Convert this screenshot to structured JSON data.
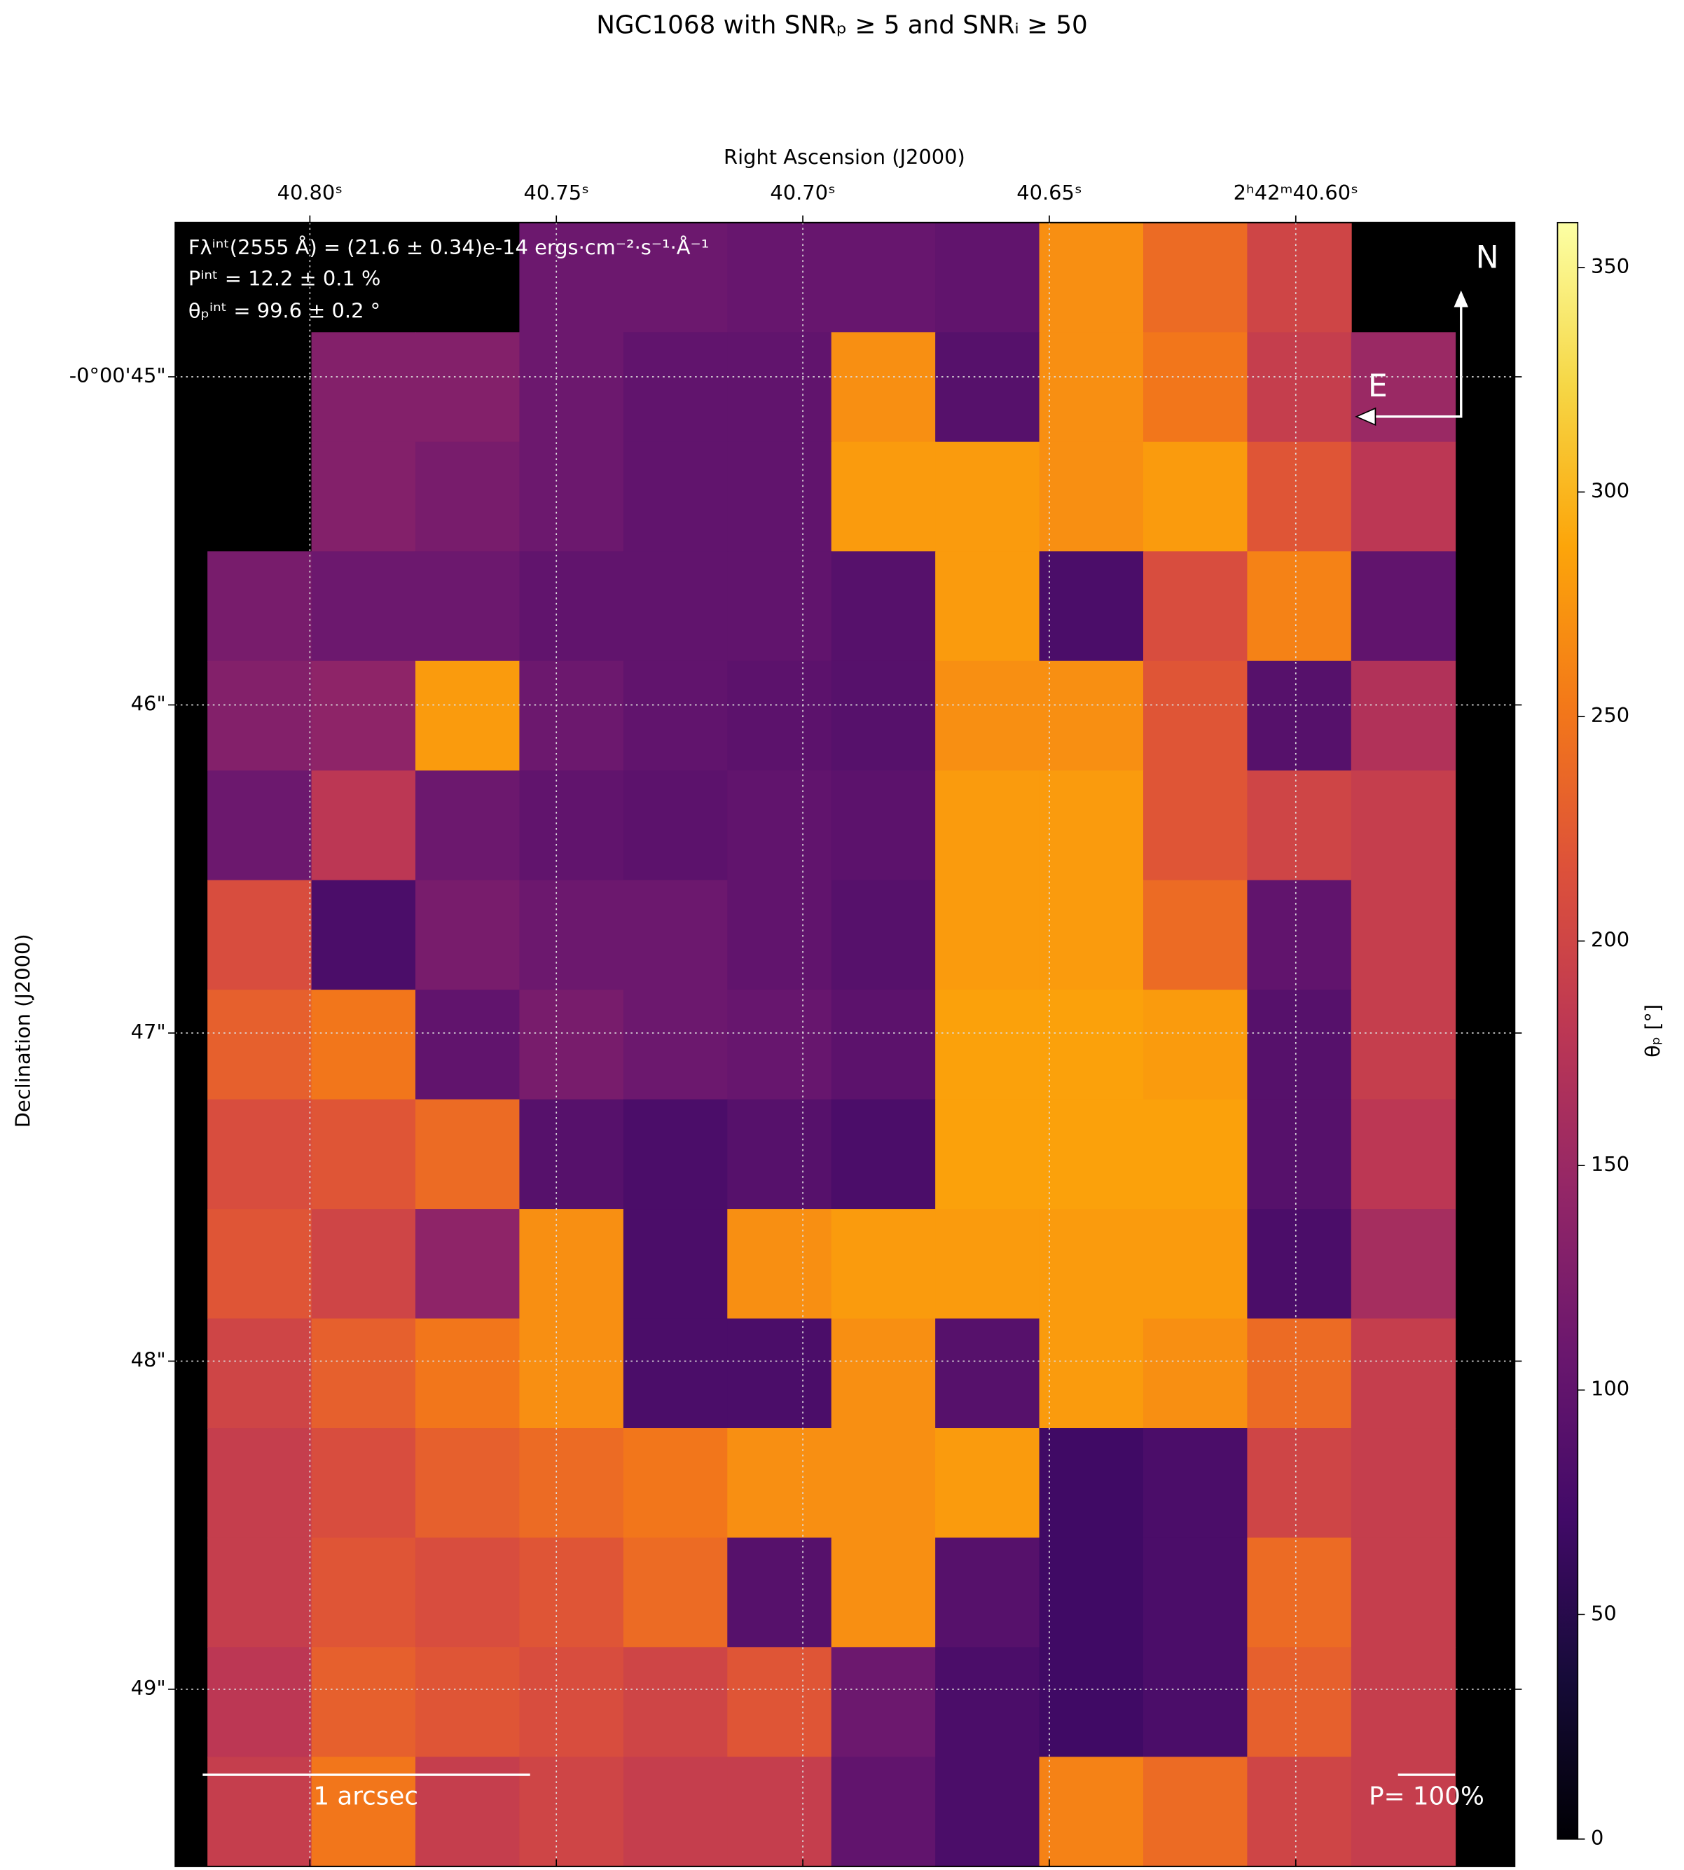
{
  "chart_data": {
    "type": "heatmap",
    "title": "NGC1068 with SNRₚ ≥ 5 and SNRᵢ ≥ 50",
    "xlabel": "Right Ascension (J2000)",
    "ylabel": "Declination (J2000)",
    "xlim": [
      40.8273,
      40.5556
    ],
    "xticks": [
      {
        "value": 40.8,
        "label": "40.80ˢ"
      },
      {
        "value": 40.75,
        "label": "40.75ˢ"
      },
      {
        "value": 40.7,
        "label": "40.70ˢ"
      },
      {
        "value": 40.65,
        "label": "40.65ˢ"
      },
      {
        "value": 40.6,
        "label": "2ʰ42ᵐ40.60ˢ"
      }
    ],
    "ylim": [
      49.54,
      44.53
    ],
    "yticks": [
      {
        "value": 45,
        "label": "-0°00'45\""
      },
      {
        "value": 46,
        "label": "46\""
      },
      {
        "value": 47,
        "label": "47\""
      },
      {
        "value": 48,
        "label": "48\""
      },
      {
        "value": 49,
        "label": "49\""
      }
    ],
    "grid": true,
    "colormap": "inferno",
    "clim": [
      0,
      360
    ],
    "cticks": [
      0,
      50,
      100,
      150,
      200,
      250,
      300,
      350
    ],
    "clabel": "θₚ [°]",
    "annotations": [
      "Fλⁱⁿᵗ(2555 Å) = (21.6 ± 0.34)e-14 ergs·cm⁻²·s⁻¹·Å⁻¹",
      "Pⁱⁿᵗ = 12.2 ± 0.1 %",
      "θₚⁱⁿᵗ = 99.6 ± 0.2 °"
    ],
    "scale_label": "1 arcsec",
    "pol_scale_label": "P= 100%",
    "north": "N",
    "east": "E",
    "z": [
      [
        null,
        null,
        null,
        110,
        110,
        105,
        105,
        100,
        270,
        240,
        200,
        null
      ],
      [
        null,
        130,
        130,
        110,
        100,
        100,
        270,
        90,
        270,
        250,
        190,
        150
      ],
      [
        null,
        130,
        120,
        110,
        100,
        100,
        280,
        280,
        270,
        280,
        220,
        180
      ],
      [
        120,
        110,
        110,
        100,
        100,
        100,
        90,
        280,
        80,
        210,
        260,
        100
      ],
      [
        130,
        140,
        280,
        110,
        100,
        95,
        90,
        270,
        270,
        220,
        90,
        170
      ],
      [
        110,
        180,
        110,
        100,
        95,
        100,
        95,
        280,
        280,
        220,
        200,
        190
      ],
      [
        210,
        80,
        120,
        110,
        110,
        100,
        90,
        280,
        280,
        240,
        100,
        190
      ],
      [
        230,
        250,
        100,
        120,
        110,
        105,
        95,
        285,
        285,
        280,
        90,
        190
      ],
      [
        210,
        220,
        240,
        90,
        80,
        90,
        80,
        285,
        285,
        285,
        90,
        180
      ],
      [
        220,
        200,
        140,
        270,
        80,
        270,
        280,
        280,
        280,
        280,
        80,
        160
      ],
      [
        200,
        230,
        250,
        270,
        80,
        80,
        270,
        90,
        280,
        270,
        240,
        190
      ],
      [
        190,
        210,
        230,
        240,
        250,
        270,
        270,
        280,
        70,
        80,
        200,
        190
      ],
      [
        190,
        220,
        210,
        220,
        240,
        90,
        270,
        90,
        70,
        80,
        240,
        190
      ],
      [
        180,
        230,
        220,
        210,
        200,
        220,
        110,
        80,
        70,
        80,
        230,
        190
      ],
      [
        190,
        250,
        190,
        200,
        190,
        190,
        100,
        80,
        260,
        240,
        200,
        190
      ]
    ]
  }
}
